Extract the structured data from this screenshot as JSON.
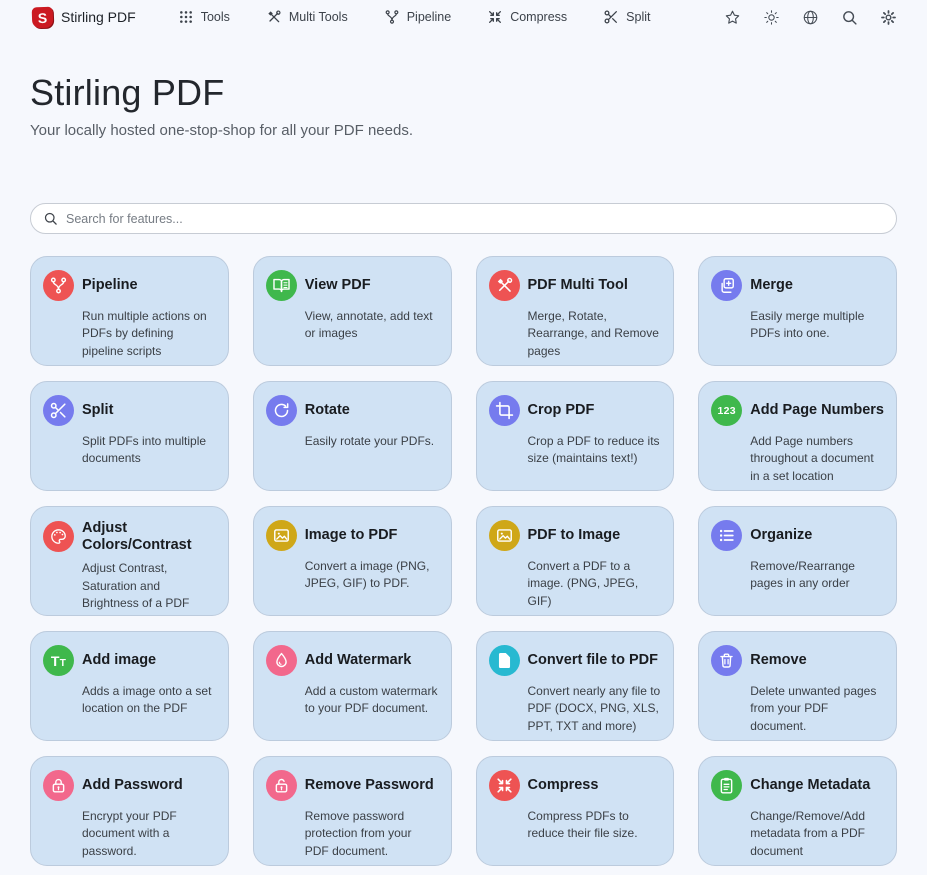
{
  "navbar": {
    "brand": {
      "label": "Stirling PDF",
      "logo_letter": "S",
      "logo_color": "#cb1a22"
    },
    "items": [
      {
        "label": "Tools",
        "icon": "grid-icon"
      },
      {
        "label": "Multi Tools",
        "icon": "tools-icon"
      },
      {
        "label": "Pipeline",
        "icon": "pipeline-icon"
      },
      {
        "label": "Compress",
        "icon": "compress-icon"
      },
      {
        "label": "Split",
        "icon": "scissors-icon"
      }
    ],
    "action_icons": [
      "star-icon",
      "sun-icon",
      "globe-icon",
      "search-icon",
      "gear-icon"
    ]
  },
  "header": {
    "title": "Stirling PDF",
    "subtitle": "Your locally hosted one-stop-shop for all your PDF needs."
  },
  "search": {
    "placeholder": "Search for features...",
    "value": ""
  },
  "colors": {
    "page_bg": "#f6f8fd",
    "card_bg": "#d0e2f4",
    "red": "#ee5353",
    "green": "#3fb84c",
    "indigo": "#767bee",
    "amber": "#cfa718",
    "rose": "#f2688c",
    "cyan": "#27b9d1"
  },
  "cards": [
    {
      "title": "Pipeline",
      "description": "Run multiple actions on PDFs by defining pipeline scripts",
      "icon": "pipeline-icon",
      "color": "#ee5353"
    },
    {
      "title": "View PDF",
      "description": "View, annotate, add text or images",
      "icon": "book-open-icon",
      "color": "#3fb84c"
    },
    {
      "title": "PDF Multi Tool",
      "description": "Merge, Rotate, Rearrange, and Remove pages",
      "icon": "tools-icon",
      "color": "#ee5353"
    },
    {
      "title": "Merge",
      "description": "Easily merge multiple PDFs into one.",
      "icon": "merge-icon",
      "color": "#767bee"
    },
    {
      "title": "Split",
      "description": "Split PDFs into multiple documents",
      "icon": "scissors-icon",
      "color": "#767bee"
    },
    {
      "title": "Rotate",
      "description": "Easily rotate your PDFs.",
      "icon": "rotate-icon",
      "color": "#767bee"
    },
    {
      "title": "Crop PDF",
      "description": "Crop a PDF to reduce its size (maintains text!)",
      "icon": "crop-icon",
      "color": "#767bee"
    },
    {
      "title": "Add Page Numbers",
      "description": "Add Page numbers throughout a document in a set location",
      "icon": "numbers-123-icon",
      "color": "#3fb84c"
    },
    {
      "title": "Adjust Colors/Contrast",
      "description": "Adjust Contrast, Saturation and Brightness of a PDF",
      "icon": "palette-icon",
      "color": "#ee5353"
    },
    {
      "title": "Image to PDF",
      "description": "Convert a image (PNG, JPEG, GIF) to PDF.",
      "icon": "image-icon",
      "color": "#cfa718"
    },
    {
      "title": "PDF to Image",
      "description": "Convert a PDF to a image. (PNG, JPEG, GIF)",
      "icon": "image-icon",
      "color": "#cfa718"
    },
    {
      "title": "Organize",
      "description": "Remove/Rearrange pages in any order",
      "icon": "list-icon",
      "color": "#767bee"
    },
    {
      "title": "Add image",
      "description": "Adds a image onto a set location on the PDF",
      "icon": "text-Tt-icon",
      "color": "#3fb84c"
    },
    {
      "title": "Add Watermark",
      "description": "Add a custom watermark to your PDF document.",
      "icon": "droplet-icon",
      "color": "#f2688c"
    },
    {
      "title": "Convert file to PDF",
      "description": "Convert nearly any file to PDF (DOCX, PNG, XLS, PPT, TXT and more)",
      "icon": "file-icon",
      "color": "#27b9d1"
    },
    {
      "title": "Remove",
      "description": "Delete unwanted pages from your PDF document.",
      "icon": "trash-icon",
      "color": "#767bee"
    },
    {
      "title": "Add Password",
      "description": "Encrypt your PDF document with a password.",
      "icon": "lock-icon",
      "color": "#f2688c"
    },
    {
      "title": "Remove Password",
      "description": "Remove password protection from your PDF document.",
      "icon": "unlock-icon",
      "color": "#f2688c"
    },
    {
      "title": "Compress",
      "description": "Compress PDFs to reduce their file size.",
      "icon": "compress-icon",
      "color": "#ee5353"
    },
    {
      "title": "Change Metadata",
      "description": "Change/Remove/Add metadata from a PDF document",
      "icon": "clipboard-icon",
      "color": "#3fb84c"
    }
  ]
}
